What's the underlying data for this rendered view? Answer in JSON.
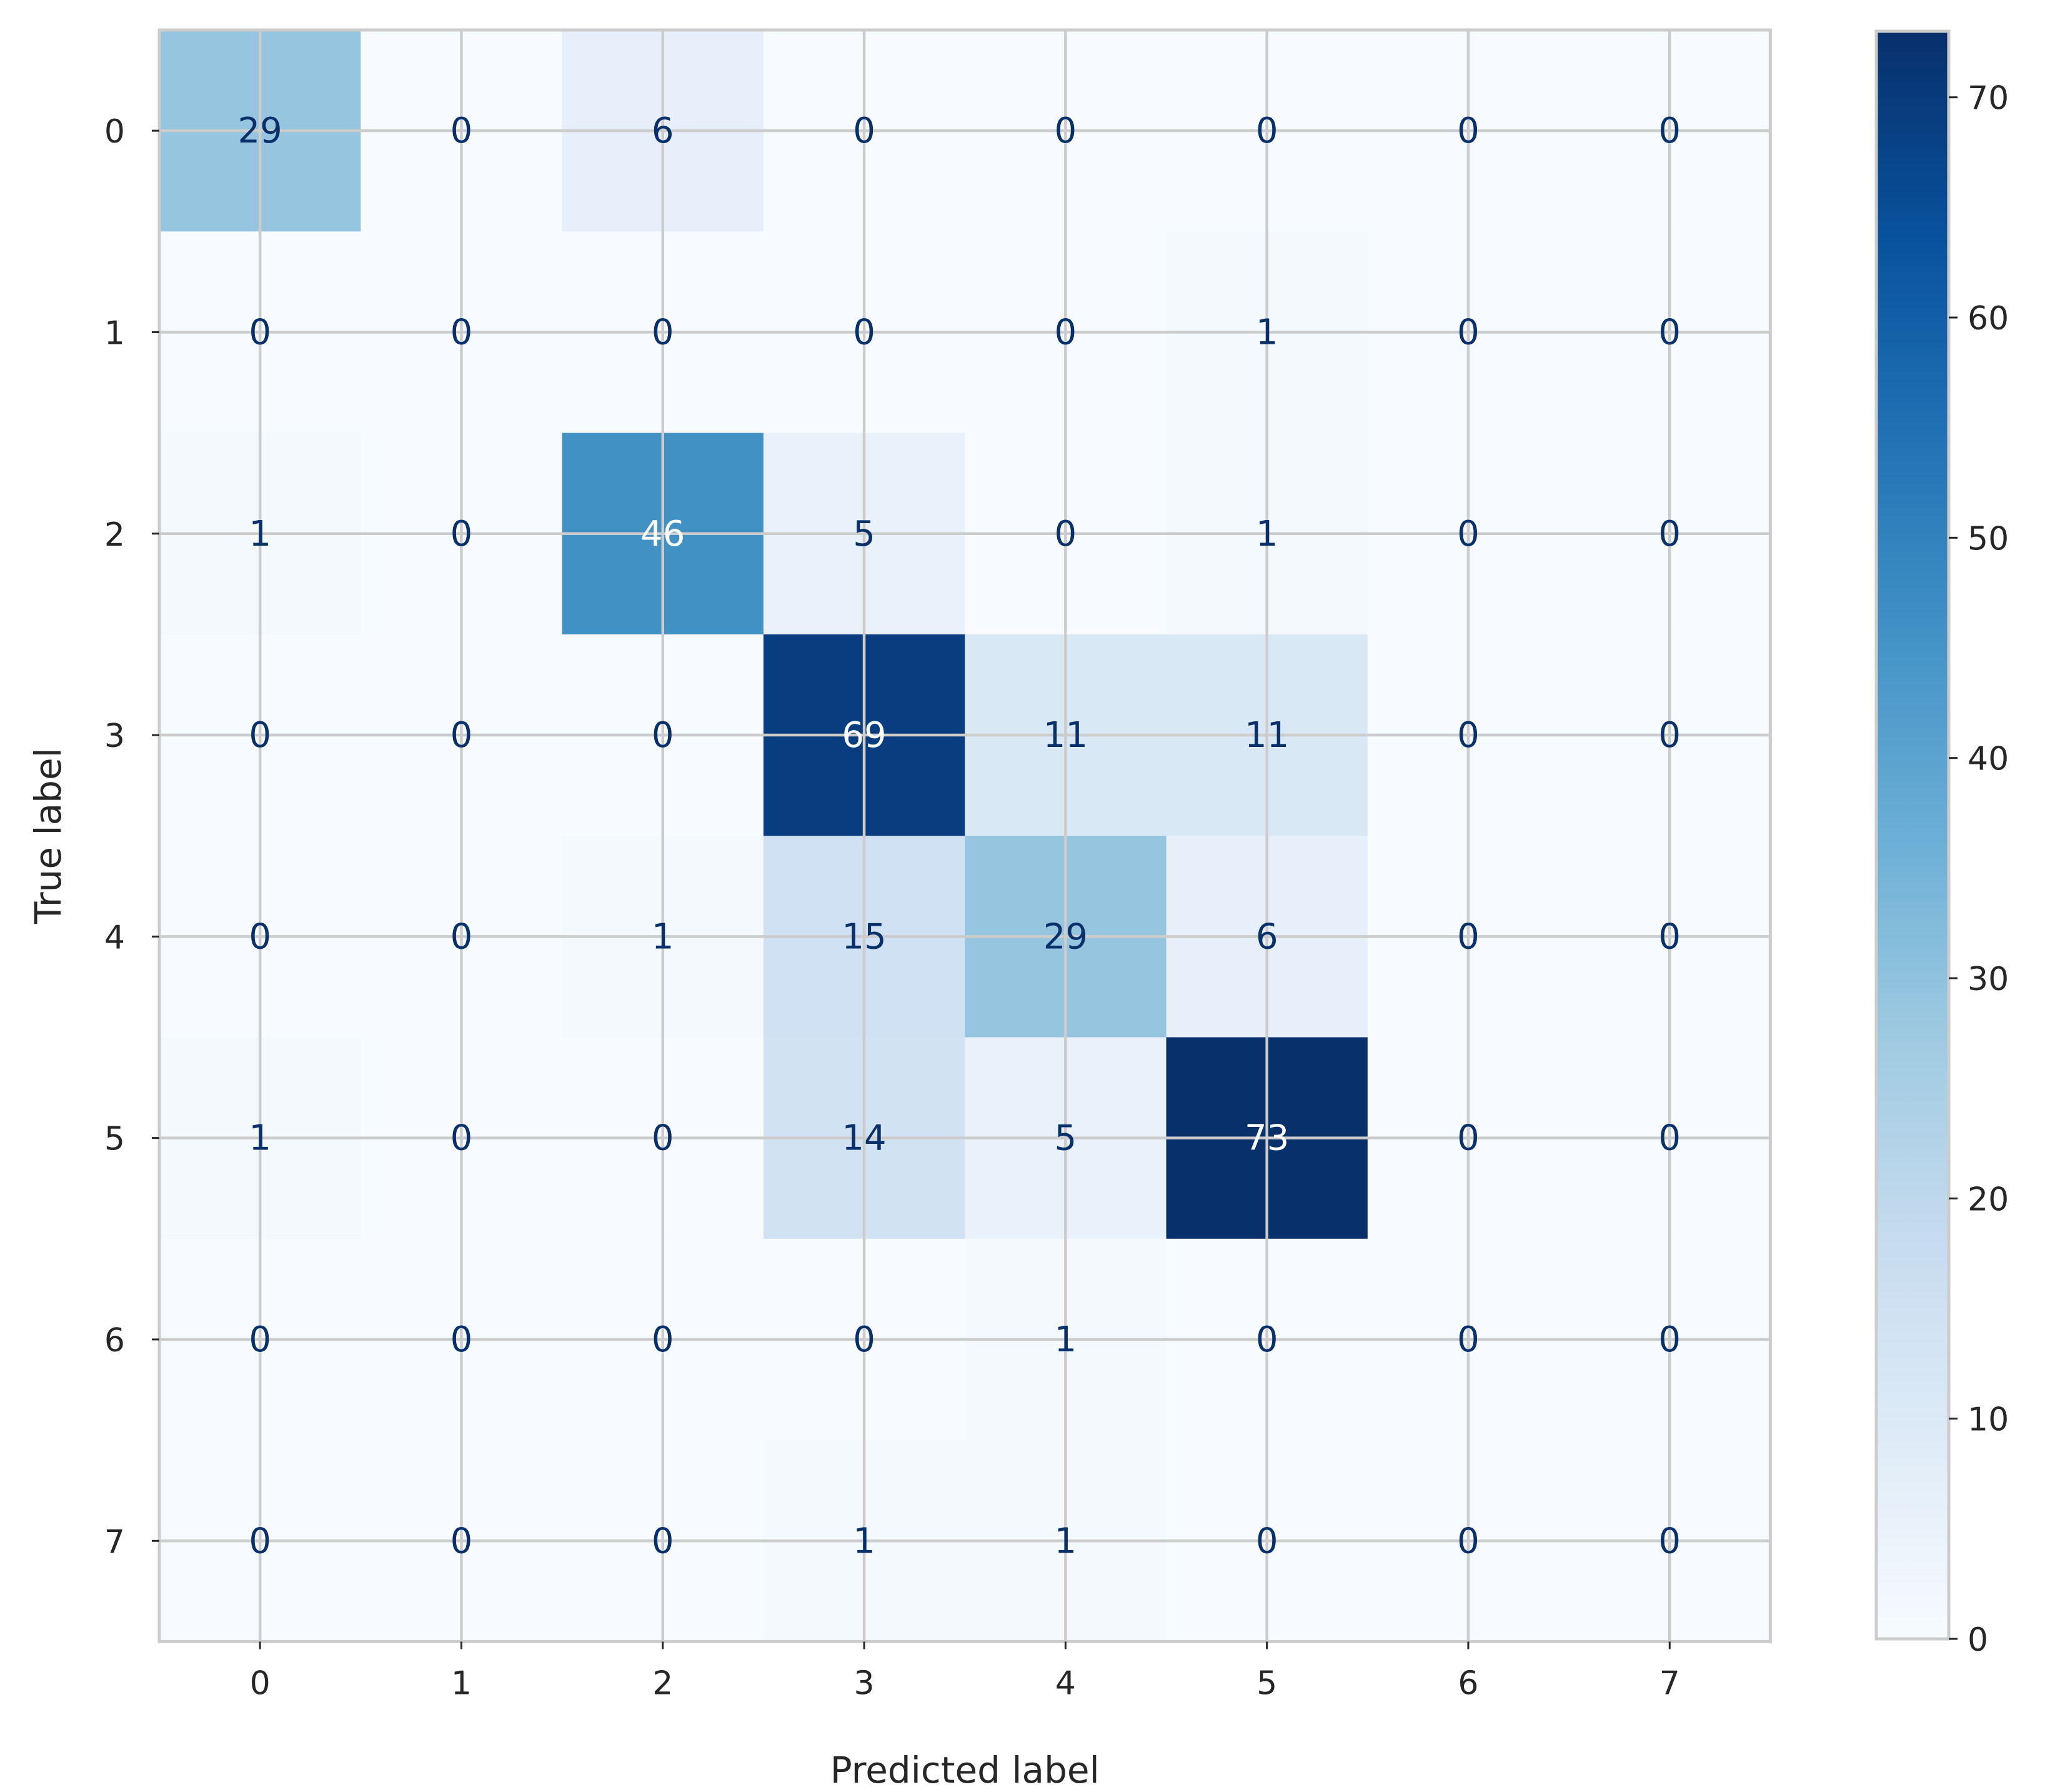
{
  "chart_data": {
    "type": "heatmap",
    "title": "",
    "xlabel": "Predicted label",
    "ylabel": "True label",
    "x_categories": [
      "0",
      "1",
      "2",
      "3",
      "4",
      "5",
      "6",
      "7"
    ],
    "y_categories": [
      "0",
      "1",
      "2",
      "3",
      "4",
      "5",
      "6",
      "7"
    ],
    "matrix": [
      [
        29,
        0,
        6,
        0,
        0,
        0,
        0,
        0
      ],
      [
        0,
        0,
        0,
        0,
        0,
        1,
        0,
        0
      ],
      [
        1,
        0,
        46,
        5,
        0,
        1,
        0,
        0
      ],
      [
        0,
        0,
        0,
        69,
        11,
        11,
        0,
        0
      ],
      [
        0,
        0,
        1,
        15,
        29,
        6,
        0,
        0
      ],
      [
        1,
        0,
        0,
        14,
        5,
        73,
        0,
        0
      ],
      [
        0,
        0,
        0,
        0,
        1,
        0,
        0,
        0
      ],
      [
        0,
        0,
        0,
        1,
        1,
        0,
        0,
        0
      ]
    ],
    "colormap": "Blues",
    "vmin": 0,
    "vmax": 73,
    "colorbar": {
      "ticks": [
        0,
        10,
        20,
        30,
        40,
        50,
        60,
        70
      ],
      "tick_labels": [
        "0",
        "10",
        "20",
        "30",
        "40",
        "50",
        "60",
        "70"
      ]
    },
    "grid": true,
    "text_color_dark": "#08306b",
    "text_color_light": "#ffffff",
    "grid_color": "#cccccc",
    "frame_color": "#cccccc"
  }
}
